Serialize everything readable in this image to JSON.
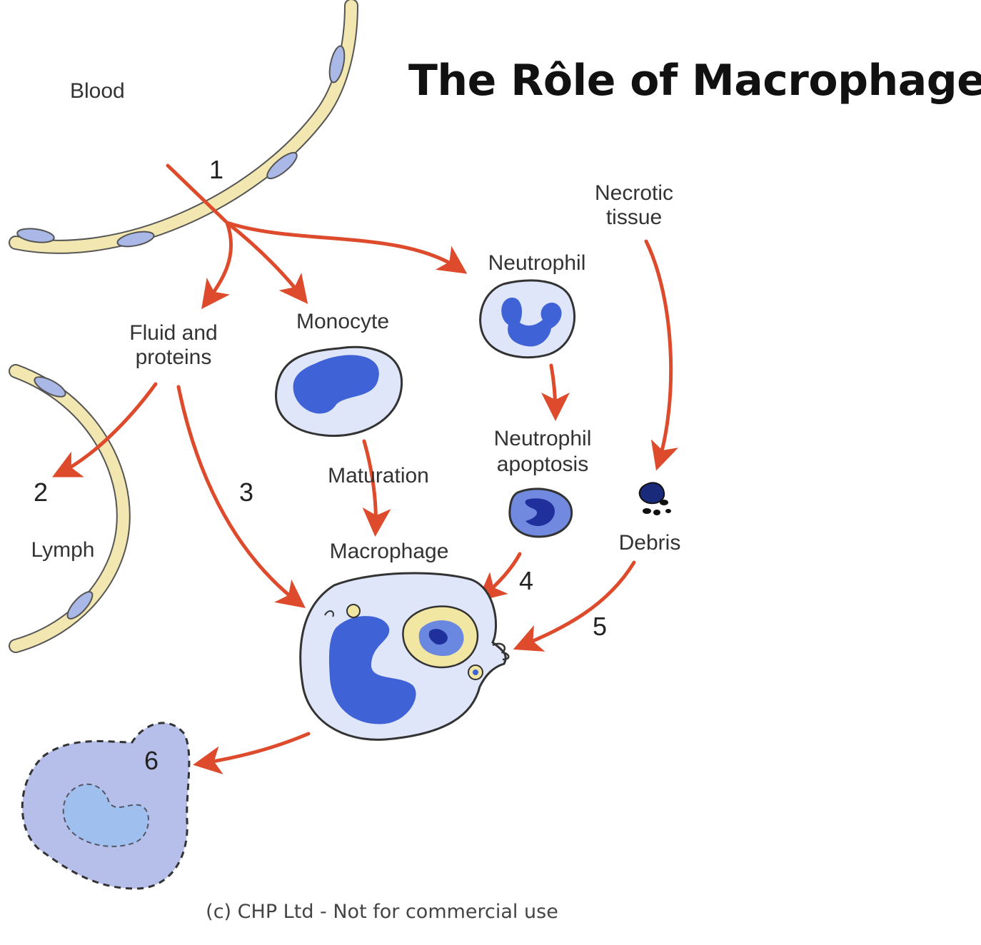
{
  "title": "The Rôle of Macrophages",
  "footer": "(c) CHP Ltd - Not for commercial use",
  "labels": {
    "blood": "Blood",
    "necrotic_line1": "Necrotic",
    "necrotic_line2": "tissue",
    "neutrophil": "Neutrophil",
    "fluid_line1": "Fluid and",
    "fluid_line2": "proteins",
    "monocyte": "Monocyte",
    "apoptosis_line1": "Neutrophil",
    "apoptosis_line2": "apoptosis",
    "maturation": "Maturation",
    "lymph": "Lymph",
    "macrophage": "Macrophage",
    "debris": "Debris"
  },
  "steps": [
    "1",
    "2",
    "3",
    "4",
    "5",
    "6"
  ],
  "colors": {
    "arrow": "#dd4b2c",
    "vessel_wall": "#f2e7b0",
    "endothelial_nucleus": "#a9b8e6",
    "cytoplasm": "#dfe6fa",
    "nucleus": "#3f63d6",
    "dead_cell": "#a8b4e6",
    "phagosome": "#f2e6a3"
  }
}
